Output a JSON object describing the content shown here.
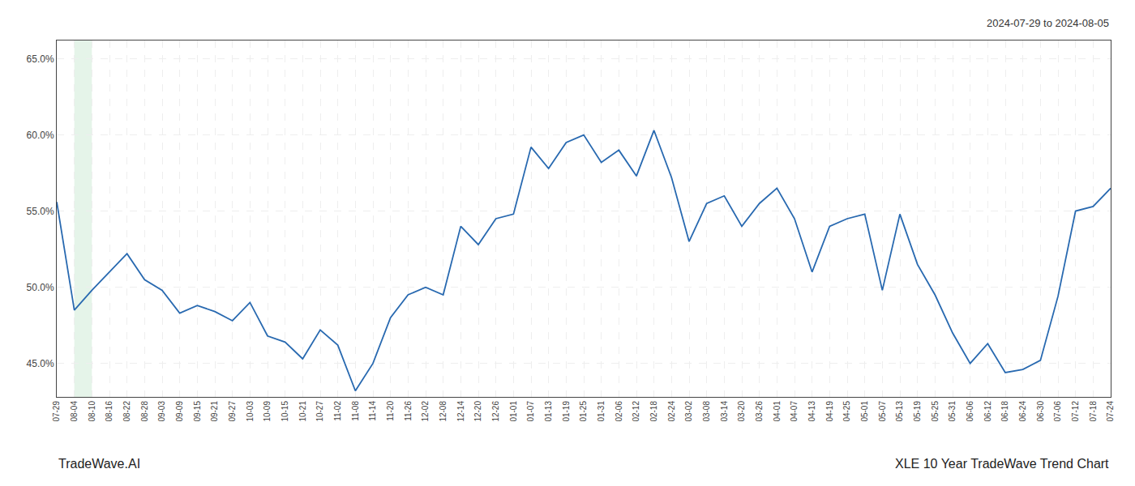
{
  "chart_data": {
    "type": "line",
    "title": "XLE 10 Year TradeWave Trend Chart",
    "subtitle": "2024-07-29 to 2024-08-05",
    "annotations": [
      "TradeWave.AI"
    ],
    "categories": [
      "07-29",
      "08-04",
      "08-10",
      "08-16",
      "08-22",
      "08-28",
      "09-03",
      "09-09",
      "09-15",
      "09-21",
      "09-27",
      "10-03",
      "10-09",
      "10-15",
      "10-21",
      "10-27",
      "11-02",
      "11-08",
      "11-14",
      "11-20",
      "11-26",
      "12-02",
      "12-08",
      "12-14",
      "12-20",
      "12-26",
      "01-01",
      "01-07",
      "01-13",
      "01-19",
      "01-25",
      "01-31",
      "02-06",
      "02-12",
      "02-18",
      "02-24",
      "03-02",
      "03-08",
      "03-14",
      "03-20",
      "03-26",
      "04-01",
      "04-07",
      "04-13",
      "04-19",
      "04-25",
      "05-01",
      "05-07",
      "05-13",
      "05-19",
      "05-25",
      "05-31",
      "06-06",
      "06-12",
      "06-18",
      "06-24",
      "06-30",
      "07-06",
      "07-12",
      "07-18",
      "07-24"
    ],
    "values": [
      0.556,
      0.485,
      0.498,
      0.51,
      0.522,
      0.505,
      0.498,
      0.483,
      0.488,
      0.484,
      0.478,
      0.49,
      0.468,
      0.464,
      0.453,
      0.472,
      0.462,
      0.432,
      0.45,
      0.48,
      0.495,
      0.5,
      0.495,
      0.54,
      0.528,
      0.545,
      0.548,
      0.592,
      0.578,
      0.595,
      0.6,
      0.582,
      0.59,
      0.573,
      0.603,
      0.572,
      0.53,
      0.555,
      0.56,
      0.54,
      0.555,
      0.565,
      0.545,
      0.51,
      0.54,
      0.545,
      0.548,
      0.498,
      0.548,
      0.515,
      0.495,
      0.47,
      0.45,
      0.463,
      0.444,
      0.446,
      0.452,
      0.494,
      0.55,
      0.553,
      0.565
    ],
    "color": "#2869b0",
    "shade": {
      "from": "08-04",
      "to": "08-10",
      "color": "#d4edda"
    },
    "ylim": [
      0.428,
      0.662
    ],
    "yticks": [
      {
        "value": 0.45,
        "label": "45.0%"
      },
      {
        "value": 0.5,
        "label": "50.0%"
      },
      {
        "value": 0.55,
        "label": "55.0%"
      },
      {
        "value": 0.6,
        "label": "60.0%"
      },
      {
        "value": 0.65,
        "label": "65.0%"
      }
    ],
    "grid": true
  }
}
